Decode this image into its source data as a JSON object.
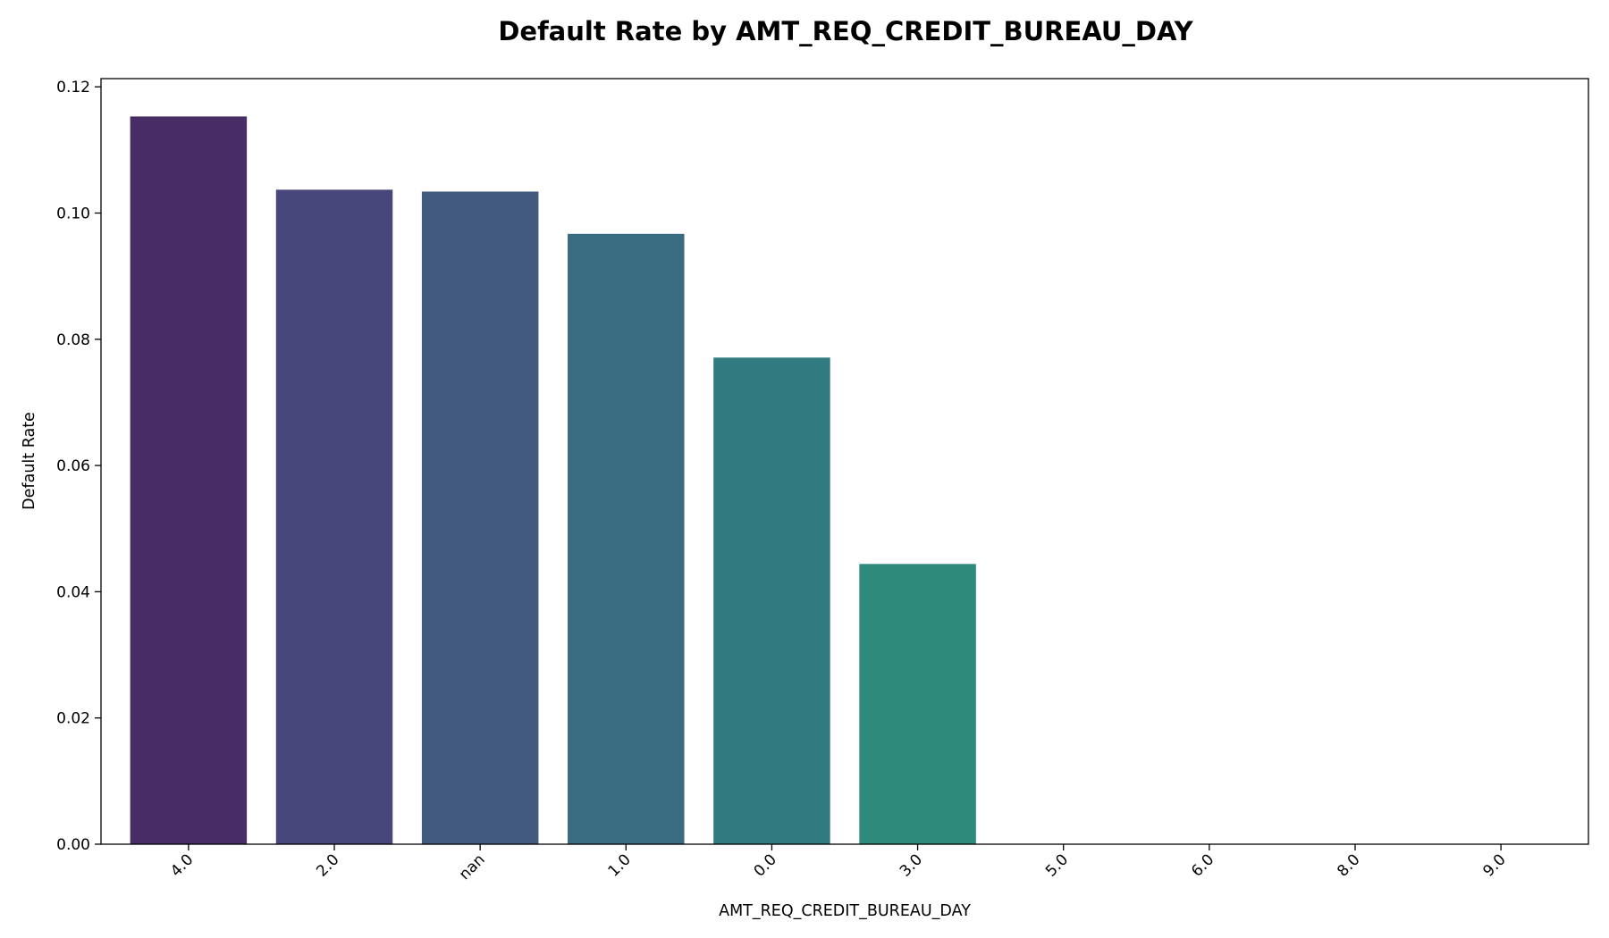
{
  "chart_data": {
    "type": "bar",
    "title": "Default Rate by AMT_REQ_CREDIT_BUREAU_DAY",
    "xlabel": "AMT_REQ_CREDIT_BUREAU_DAY",
    "ylabel": "Default Rate",
    "categories": [
      "4.0",
      "2.0",
      "nan",
      "1.0",
      "0.0",
      "3.0",
      "5.0",
      "6.0",
      "8.0",
      "9.0"
    ],
    "values": [
      0.1153,
      0.1037,
      0.1034,
      0.0967,
      0.0771,
      0.0444,
      0,
      0,
      0,
      0
    ],
    "colors": [
      "#482c65",
      "#48477b",
      "#425a7e",
      "#396c80",
      "#307b7f",
      "#2e8b7b",
      "#2a9a75",
      "#3aa86d",
      "#5ab65e",
      "#7ec24f"
    ],
    "ylim": [
      0,
      0.1213
    ],
    "yticks": [
      "0.00",
      "0.02",
      "0.04",
      "0.06",
      "0.08",
      "0.10",
      "0.12"
    ],
    "grid": false,
    "legend": "none"
  }
}
